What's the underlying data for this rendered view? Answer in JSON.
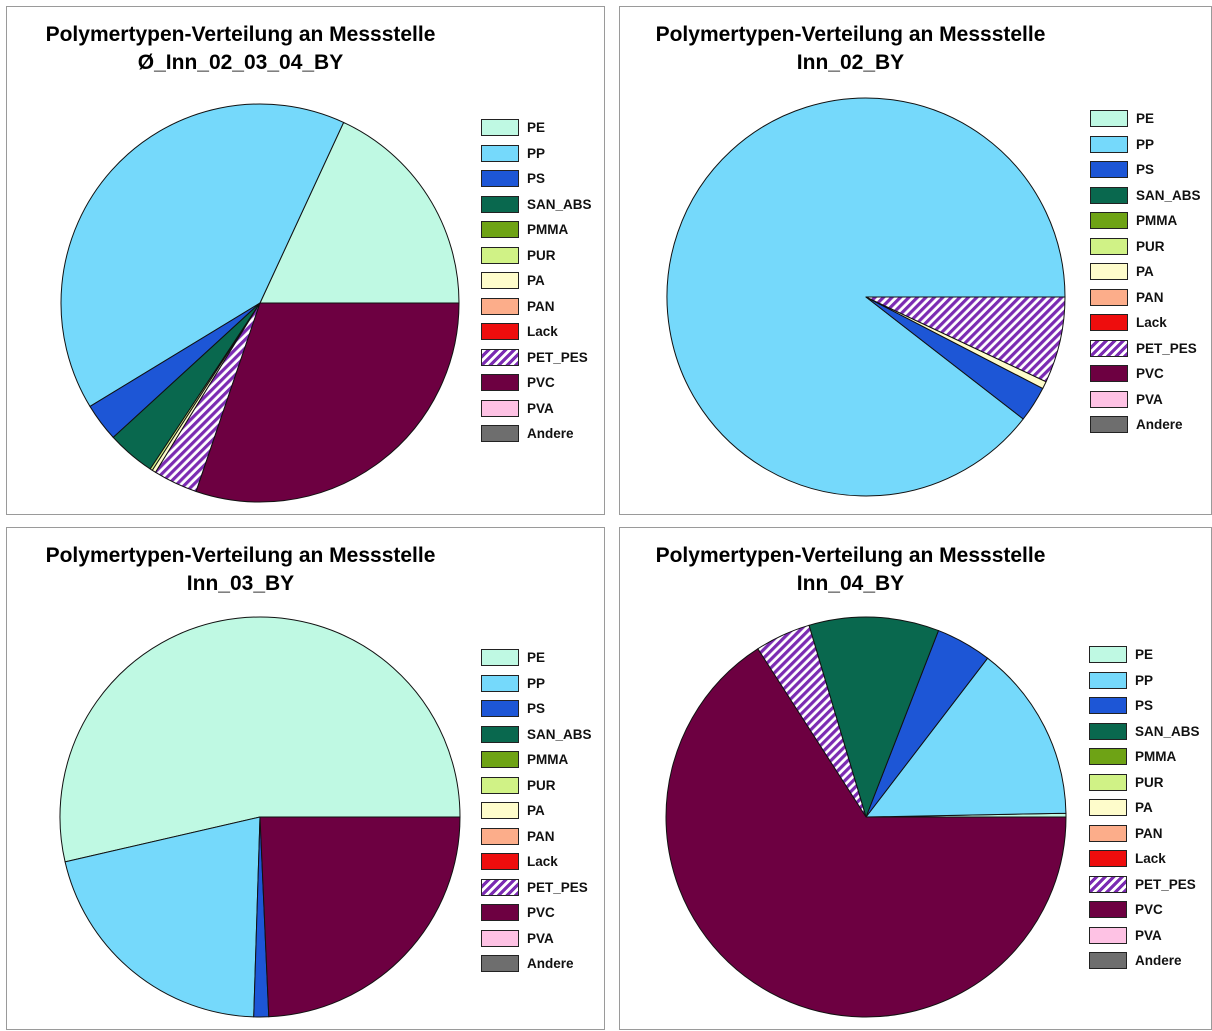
{
  "legend_categories": [
    "PE",
    "PP",
    "PS",
    "SAN_ABS",
    "PMMA",
    "PUR",
    "PA",
    "PAN",
    "Lack",
    "PET_PES",
    "PVC",
    "PVA",
    "Andere"
  ],
  "colors": {
    "PE": "#bff9e3",
    "PP": "#75d9fb",
    "PS": "#1d56d6",
    "SAN_ABS": "#09684e",
    "PMMA": "#6ea315",
    "PUR": "#d0f286",
    "PA": "#fefccb",
    "PAN": "#fcad8a",
    "Lack": "#ee0d0d",
    "PET_PES": "hatch",
    "PVC": "#6d0041",
    "PVA": "#fec2e4",
    "Andere": "#6e6e6e"
  },
  "chart_data": [
    {
      "type": "pie",
      "title": "Polymertypen-Verteilung an Messstelle",
      "subtitle": "Ø_Inn_02_03_04_BY",
      "categories": [
        "PE",
        "PP",
        "PS",
        "SAN_ABS",
        "PMMA",
        "PUR",
        "PA",
        "PAN",
        "Lack",
        "PET_PES",
        "PVC",
        "PVA",
        "Andere"
      ],
      "values": [
        18.1,
        40.6,
        3.1,
        3.9,
        0,
        0.2,
        0.3,
        0,
        0,
        3.6,
        30.2,
        0,
        0
      ],
      "start_angle_deg": 0,
      "direction": "counterclockwise",
      "legend_position": "right"
    },
    {
      "type": "pie",
      "title": "Polymertypen-Verteilung an Messstelle",
      "subtitle": "Inn_02_BY",
      "categories": [
        "PE",
        "PP",
        "PS",
        "SAN_ABS",
        "PMMA",
        "PUR",
        "PA",
        "PAN",
        "Lack",
        "PET_PES",
        "PVC",
        "PVA",
        "Andere"
      ],
      "values": [
        0,
        89.5,
        2.9,
        0,
        0,
        0,
        0.6,
        0,
        0,
        7.0,
        0,
        0,
        0
      ],
      "start_angle_deg": 0,
      "direction": "counterclockwise",
      "legend_position": "right"
    },
    {
      "type": "pie",
      "title": "Polymertypen-Verteilung an Messstelle",
      "subtitle": "Inn_03_BY",
      "categories": [
        "PE",
        "PP",
        "PS",
        "SAN_ABS",
        "PMMA",
        "PUR",
        "PA",
        "PAN",
        "Lack",
        "PET_PES",
        "PVC",
        "PVA",
        "Andere"
      ],
      "values": [
        53.6,
        20.9,
        1.2,
        0,
        0,
        0,
        0,
        0,
        0,
        0,
        24.3,
        0,
        0
      ],
      "start_angle_deg": 0,
      "direction": "counterclockwise",
      "legend_position": "right"
    },
    {
      "type": "pie",
      "title": "Polymertypen-Verteilung an Messstelle",
      "subtitle": "Inn_04_BY",
      "categories": [
        "PE",
        "PP",
        "PS",
        "SAN_ABS",
        "PMMA",
        "PUR",
        "PA",
        "PAN",
        "Lack",
        "PET_PES",
        "PVC",
        "PVA",
        "Andere"
      ],
      "values": [
        0.3,
        14.3,
        4.5,
        10.5,
        0,
        0,
        0,
        0,
        0,
        4.5,
        65.9,
        0,
        0
      ],
      "start_angle_deg": 0,
      "direction": "counterclockwise",
      "legend_position": "right"
    }
  ]
}
